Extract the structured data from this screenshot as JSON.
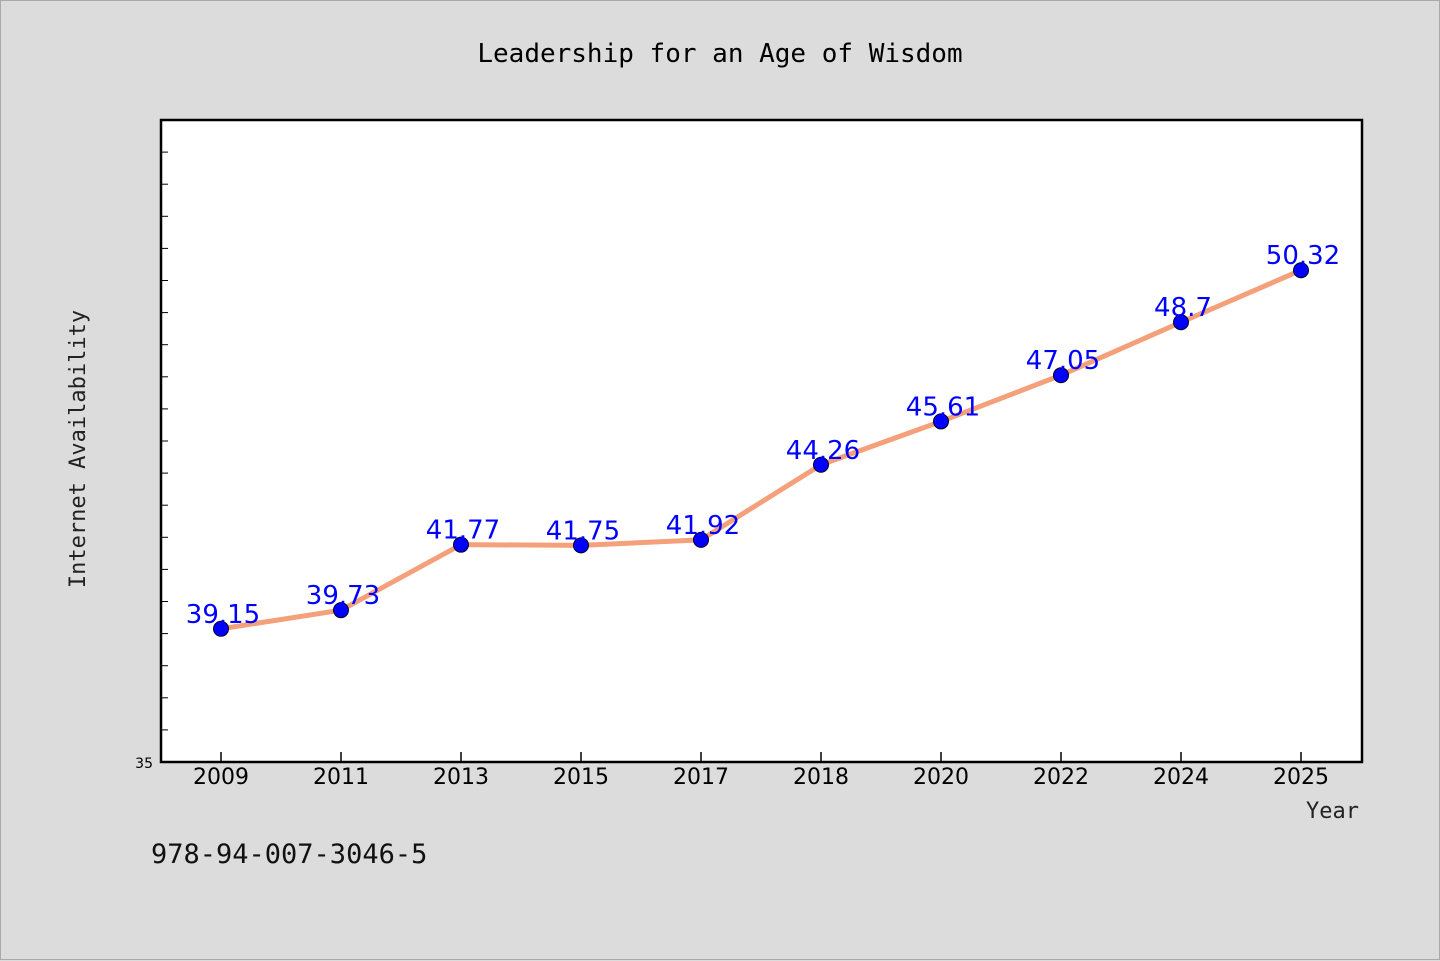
{
  "page": {
    "background": "#dcdcdc",
    "footer": "978-94-007-3046-5"
  },
  "chart_data": {
    "type": "line",
    "title": "Leadership for an Age of Wisdom",
    "xlabel": "Year",
    "ylabel": "Internet Availability",
    "categories": [
      "2009",
      "2011",
      "2013",
      "2015",
      "2017",
      "2018",
      "2020",
      "2022",
      "2024",
      "2025"
    ],
    "series": [
      {
        "values": [
          39.15,
          39.73,
          41.77,
          41.75,
          41.92,
          44.26,
          45.61,
          47.05,
          48.7,
          50.32
        ],
        "labels": [
          "39.15",
          "39.73",
          "41.77",
          "41.75",
          "41.92",
          "44.26",
          "45.61",
          "47.05",
          "48.7",
          "50.32"
        ],
        "line_color": "#f4a07a",
        "marker_color": "#0000ff"
      }
    ],
    "ylim": [
      35,
      55
    ],
    "y_tick_labels": [
      "35"
    ],
    "grid": false,
    "plot_background": "#ffffff",
    "legend": "none"
  }
}
